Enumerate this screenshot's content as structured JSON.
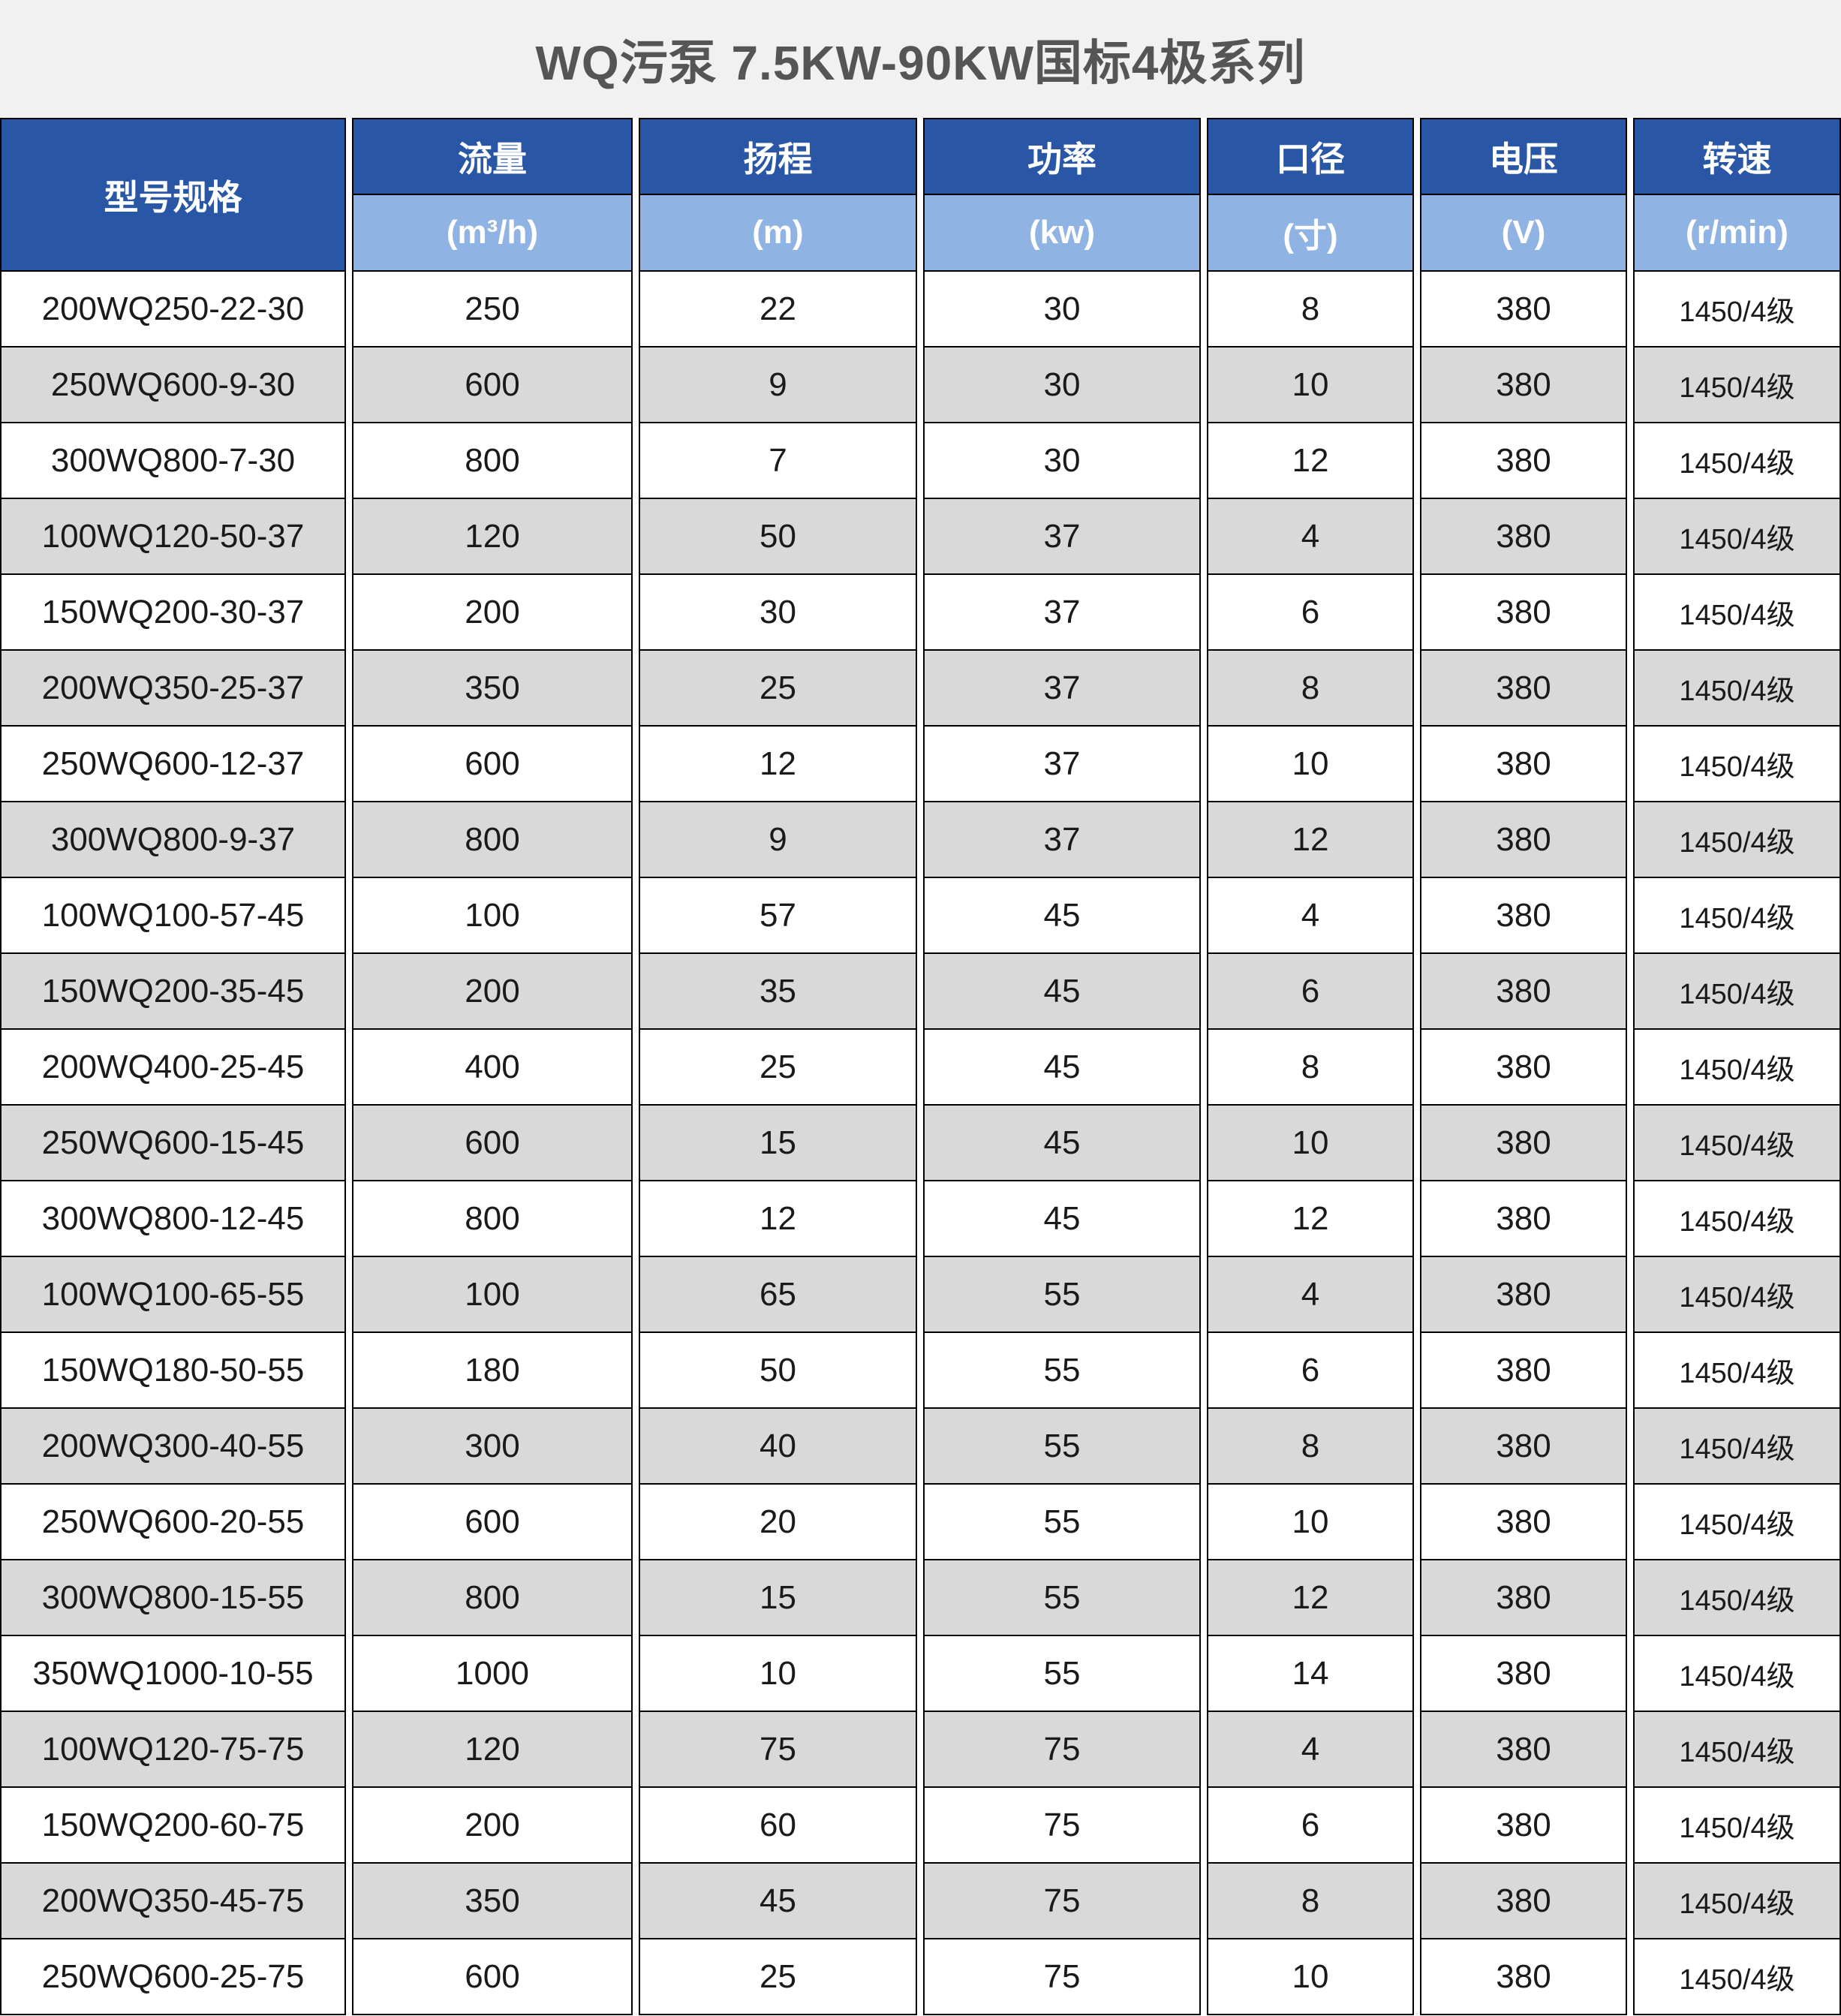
{
  "title": "WQ污泵 7.5KW-90KW国标4极系列",
  "table": {
    "columns": [
      {
        "key": "model",
        "label": "型号规格",
        "unit": ""
      },
      {
        "key": "flow",
        "label": "流量",
        "unit": "(m³/h)"
      },
      {
        "key": "head",
        "label": "扬程",
        "unit": "(m)"
      },
      {
        "key": "power",
        "label": "功率",
        "unit": "(kw)"
      },
      {
        "key": "diameter",
        "label": "口径",
        "unit": "(寸)"
      },
      {
        "key": "voltage",
        "label": "电压",
        "unit": "(V)"
      },
      {
        "key": "speed",
        "label": "转速",
        "unit": "(r/min)"
      }
    ],
    "rows": [
      [
        "200WQ250-22-30",
        "250",
        "22",
        "30",
        "8",
        "380",
        "1450/4级"
      ],
      [
        "250WQ600-9-30",
        "600",
        "9",
        "30",
        "10",
        "380",
        "1450/4级"
      ],
      [
        "300WQ800-7-30",
        "800",
        "7",
        "30",
        "12",
        "380",
        "1450/4级"
      ],
      [
        "100WQ120-50-37",
        "120",
        "50",
        "37",
        "4",
        "380",
        "1450/4级"
      ],
      [
        "150WQ200-30-37",
        "200",
        "30",
        "37",
        "6",
        "380",
        "1450/4级"
      ],
      [
        "200WQ350-25-37",
        "350",
        "25",
        "37",
        "8",
        "380",
        "1450/4级"
      ],
      [
        "250WQ600-12-37",
        "600",
        "12",
        "37",
        "10",
        "380",
        "1450/4级"
      ],
      [
        "300WQ800-9-37",
        "800",
        "9",
        "37",
        "12",
        "380",
        "1450/4级"
      ],
      [
        "100WQ100-57-45",
        "100",
        "57",
        "45",
        "4",
        "380",
        "1450/4级"
      ],
      [
        "150WQ200-35-45",
        "200",
        "35",
        "45",
        "6",
        "380",
        "1450/4级"
      ],
      [
        "200WQ400-25-45",
        "400",
        "25",
        "45",
        "8",
        "380",
        "1450/4级"
      ],
      [
        "250WQ600-15-45",
        "600",
        "15",
        "45",
        "10",
        "380",
        "1450/4级"
      ],
      [
        "300WQ800-12-45",
        "800",
        "12",
        "45",
        "12",
        "380",
        "1450/4级"
      ],
      [
        "100WQ100-65-55",
        "100",
        "65",
        "55",
        "4",
        "380",
        "1450/4级"
      ],
      [
        "150WQ180-50-55",
        "180",
        "50",
        "55",
        "6",
        "380",
        "1450/4级"
      ],
      [
        "200WQ300-40-55",
        "300",
        "40",
        "55",
        "8",
        "380",
        "1450/4级"
      ],
      [
        "250WQ600-20-55",
        "600",
        "20",
        "55",
        "10",
        "380",
        "1450/4级"
      ],
      [
        "300WQ800-15-55",
        "800",
        "15",
        "55",
        "12",
        "380",
        "1450/4级"
      ],
      [
        "350WQ1000-10-55",
        "1000",
        "10",
        "55",
        "14",
        "380",
        "1450/4级"
      ],
      [
        "100WQ120-75-75",
        "120",
        "75",
        "75",
        "4",
        "380",
        "1450/4级"
      ],
      [
        "150WQ200-60-75",
        "200",
        "60",
        "75",
        "6",
        "380",
        "1450/4级"
      ],
      [
        "200WQ350-45-75",
        "350",
        "45",
        "75",
        "8",
        "380",
        "1450/4级"
      ],
      [
        "250WQ600-25-75",
        "600",
        "25",
        "75",
        "10",
        "380",
        "1450/4级"
      ]
    ]
  },
  "colors": {
    "header_dark_blue": "#2A57A5",
    "header_light_blue": "#8FB4E3",
    "row_alt_gray": "#D9D9D9",
    "row_white": "#FFFFFF",
    "title_bg": "#F1F1F1",
    "title_text": "#555555",
    "border": "#000000"
  }
}
